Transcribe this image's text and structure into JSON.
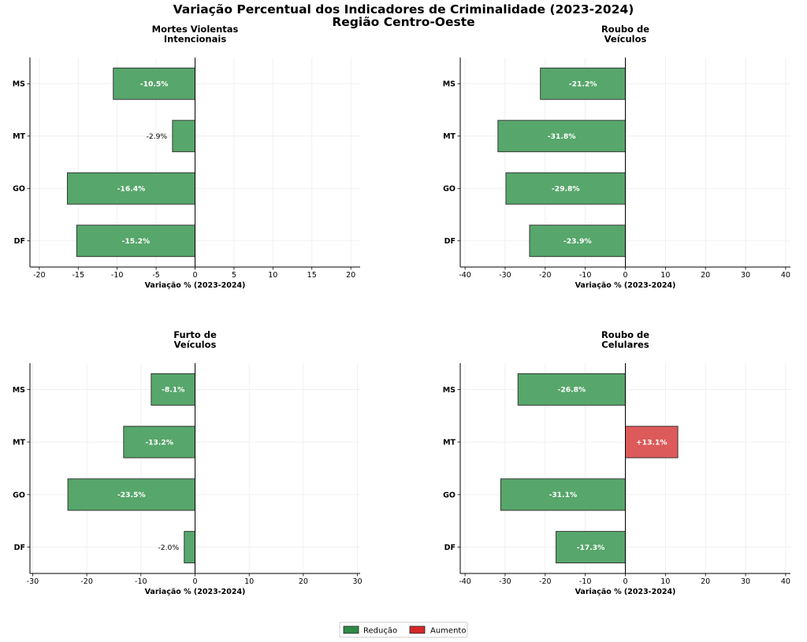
{
  "title_line1": "Variação Percentual dos Indicadores de Criminalidade (2023-2024)",
  "title_line2": "Região Centro-Oeste",
  "legend": {
    "reduction_label": "Redução",
    "increase_label": "Aumento",
    "reduction_color": "#2e8b46",
    "increase_color": "#d62728",
    "placement": "bottom-center"
  },
  "chart_data": [
    {
      "type": "bar",
      "orientation": "horizontal",
      "title": [
        "Mortes Violentas",
        "Intencionais"
      ],
      "xlabel": "Variação % (2023-2024)",
      "categories": [
        "MS",
        "MT",
        "GO",
        "DF"
      ],
      "values": [
        -10.5,
        -2.9,
        -16.4,
        -15.2
      ],
      "labels": [
        "-10.5%",
        "-2.9%",
        "-16.4%",
        "-15.2%"
      ],
      "xlim": [
        -21.2,
        21.2
      ],
      "xticks": [
        -20,
        -15,
        -10,
        -5,
        0,
        5,
        10,
        15,
        20
      ],
      "grid": true
    },
    {
      "type": "bar",
      "orientation": "horizontal",
      "title": [
        "Roubo de",
        "Veículos"
      ],
      "xlabel": "Variação % (2023-2024)",
      "categories": [
        "MS",
        "MT",
        "GO",
        "DF"
      ],
      "values": [
        -21.2,
        -31.8,
        -29.8,
        -23.9
      ],
      "labels": [
        "-21.2%",
        "-31.8%",
        "-29.8%",
        "-23.9%"
      ],
      "xlim": [
        -41.2,
        41.2
      ],
      "xticks": [
        -40,
        -30,
        -20,
        -10,
        0,
        10,
        20,
        30,
        40
      ],
      "grid": true
    },
    {
      "type": "bar",
      "orientation": "horizontal",
      "title": [
        "Furto de",
        "Veículos"
      ],
      "xlabel": "Variação % (2023-2024)",
      "categories": [
        "MS",
        "MT",
        "GO",
        "DF"
      ],
      "values": [
        -8.1,
        -13.2,
        -23.5,
        -2.0
      ],
      "labels": [
        "-8.1%",
        "-13.2%",
        "-23.5%",
        "-2.0%"
      ],
      "xlim": [
        -30.5,
        30.5
      ],
      "xticks": [
        -30,
        -20,
        -10,
        0,
        10,
        20,
        30
      ],
      "grid": true
    },
    {
      "type": "bar",
      "orientation": "horizontal",
      "title": [
        "Roubo de",
        "Celulares"
      ],
      "xlabel": "Variação % (2023-2024)",
      "categories": [
        "MS",
        "MT",
        "GO",
        "DF"
      ],
      "values": [
        -26.8,
        13.1,
        -31.1,
        -17.3
      ],
      "labels": [
        "-26.8%",
        "+13.1%",
        "-31.1%",
        "-17.3%"
      ],
      "xlim": [
        -41.2,
        41.2
      ],
      "xticks": [
        -40,
        -30,
        -20,
        -10,
        0,
        10,
        20,
        30,
        40
      ],
      "grid": true
    }
  ]
}
